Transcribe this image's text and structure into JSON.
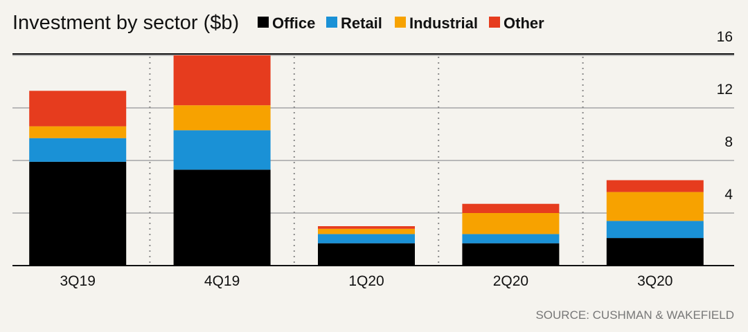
{
  "chart_data": {
    "type": "bar",
    "stacked": true,
    "title": "Investment by sector ($b)",
    "categories": [
      "3Q19",
      "4Q19",
      "1Q20",
      "2Q20",
      "3Q20"
    ],
    "series": [
      {
        "name": "Office",
        "color": "#000000",
        "values": [
          7.9,
          7.3,
          1.7,
          1.7,
          2.1
        ]
      },
      {
        "name": "Retail",
        "color": "#1a91d6",
        "values": [
          1.8,
          3.0,
          0.7,
          0.7,
          1.3
        ]
      },
      {
        "name": "Industrial",
        "color": "#f7a200",
        "values": [
          0.9,
          1.9,
          0.4,
          1.6,
          2.2
        ]
      },
      {
        "name": "Other",
        "color": "#e63c1e",
        "values": [
          2.7,
          3.8,
          0.2,
          0.7,
          0.9
        ]
      }
    ],
    "yticks": [
      4,
      8,
      12,
      16
    ],
    "ylim": [
      0,
      16
    ],
    "y_axis_position": "right",
    "grid": true,
    "legend_position": "top"
  },
  "source": "SOURCE: CUSHMAN & WAKEFIELD"
}
